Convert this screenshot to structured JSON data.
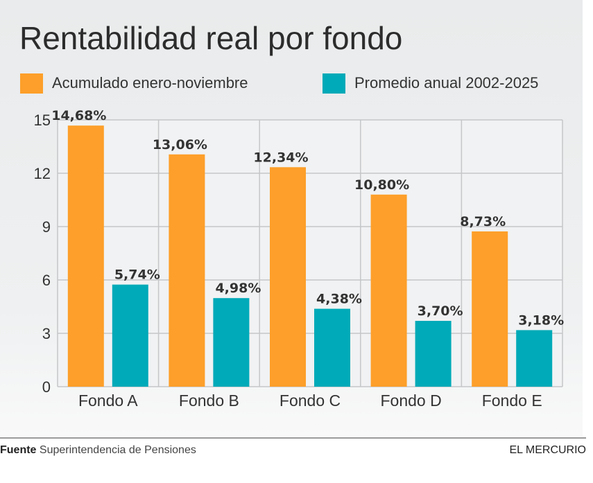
{
  "title": "Rentabilidad real por fondo",
  "footer": {
    "source_label": "Fuente",
    "source_text": "Superintendencia de Pensiones",
    "brand": "EL MERCURIO"
  },
  "chart_data": {
    "type": "bar",
    "title": "Rentabilidad real por fondo",
    "xlabel": "",
    "ylabel": "",
    "ylim": [
      0,
      15
    ],
    "yticks": [
      0,
      3,
      6,
      9,
      12,
      15
    ],
    "grid": true,
    "legend_position": "top",
    "categories": [
      "Fondo A",
      "Fondo B",
      "Fondo C",
      "Fondo D",
      "Fondo E"
    ],
    "series": [
      {
        "name": "Acumulado enero-noviembre",
        "color": "#fd9f2a",
        "values": [
          14.68,
          13.06,
          12.34,
          10.8,
          8.73
        ],
        "labels": [
          "14,68%",
          "13,06%",
          "12,34%",
          "10,80%",
          "8,73%"
        ]
      },
      {
        "name": "Promedio anual 2002-2025",
        "color": "#00aab8",
        "values": [
          5.74,
          4.98,
          4.38,
          3.7,
          3.18
        ],
        "labels": [
          "5,74%",
          "4,98%",
          "4,38%",
          "3,70%",
          "3,18%"
        ]
      }
    ]
  }
}
